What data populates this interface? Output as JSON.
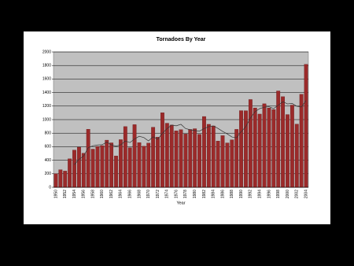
{
  "chart_data": {
    "type": "bar",
    "title": "Tornadoes By Year",
    "x_label": "Year",
    "categories": [
      "1950",
      null,
      "1952",
      null,
      "1954",
      null,
      "1956",
      null,
      "1958",
      null,
      "1960",
      null,
      "1962",
      null,
      "1964",
      null,
      "1966",
      null,
      "1968",
      null,
      "1970",
      null,
      "1972",
      null,
      "1974",
      null,
      "1976",
      null,
      "1978",
      null,
      "1980",
      null,
      "1982",
      null,
      "1984",
      null,
      "1986",
      null,
      "1988",
      null,
      "1990",
      null,
      "1992",
      null,
      "1994",
      null,
      "1996",
      null,
      "1998",
      null,
      "2000",
      null,
      "2002",
      null,
      "2004"
    ],
    "series": [
      {
        "type": "bar",
        "color": "#9b2a2a",
        "values": [
          201,
          260,
          240,
          421,
          550,
          593,
          504,
          858,
          564,
          604,
          616,
          697,
          657,
          464,
          704,
          897,
          585,
          926,
          660,
          608,
          653,
          888,
          741,
          1102,
          947,
          920,
          835,
          852,
          788,
          855,
          866,
          783,
          1046,
          931,
          907,
          684,
          764,
          656,
          702,
          856,
          1133,
          1132,
          1297,
          1173,
          1082,
          1234,
          1173,
          1148,
          1424,
          1339,
          1075,
          1215,
          934,
          1374,
          1817
        ]
      },
      {
        "type": "line",
        "color": "#333333",
        "values": [
          null,
          null,
          null,
          null,
          334,
          413,
          462,
          585,
          614,
          625,
          629,
          668,
          628,
          608,
          628,
          684,
          661,
          715,
          754,
          735,
          686,
          747,
          710,
          798,
          866,
          920,
          909,
          931,
          868,
          850,
          839,
          829,
          868,
          896,
          907,
          870,
          826,
          788,
          743,
          732,
          822,
          896,
          1024,
          1118,
          1163,
          1184,
          1192,
          1162,
          1212,
          1264,
          1232,
          1240,
          1197,
          1187,
          1283
        ]
      }
    ],
    "ylim": [
      0,
      2000
    ],
    "yticks": [
      0,
      200,
      400,
      600,
      800,
      1000,
      1200,
      1400,
      1600,
      1800,
      2000
    ],
    "grid": true,
    "plot_background": "#c0c0c0"
  }
}
